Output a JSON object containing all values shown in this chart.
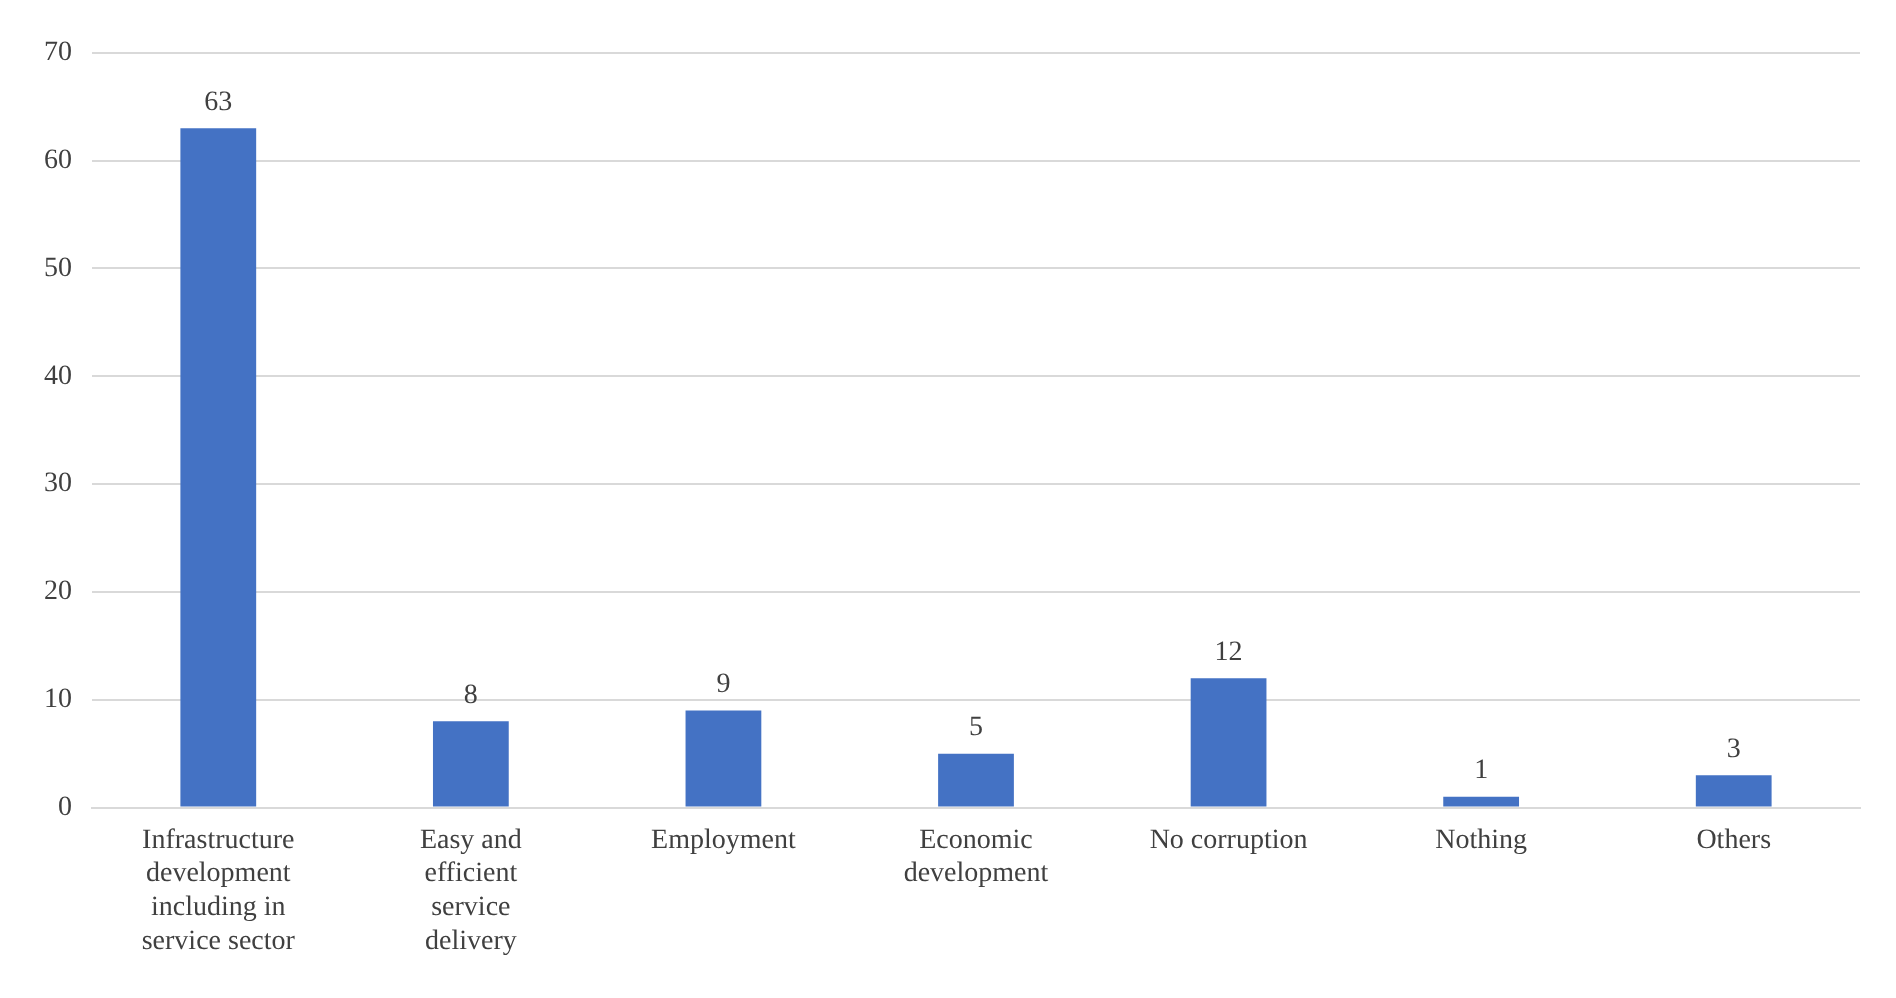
{
  "chart_data": {
    "type": "bar",
    "categories": [
      "Infrastructure development including in service sector",
      "Easy and efficient service delivery",
      "Employment",
      "Economic development",
      "No corruption",
      "Nothing",
      "Others"
    ],
    "values": [
      63,
      8,
      9,
      5,
      12,
      1,
      3
    ],
    "color": "#4472c4",
    "ylim": [
      0,
      70
    ],
    "yticks": [
      0,
      10,
      20,
      30,
      40,
      50,
      60,
      70
    ],
    "grid": "y",
    "data_labels": true
  }
}
